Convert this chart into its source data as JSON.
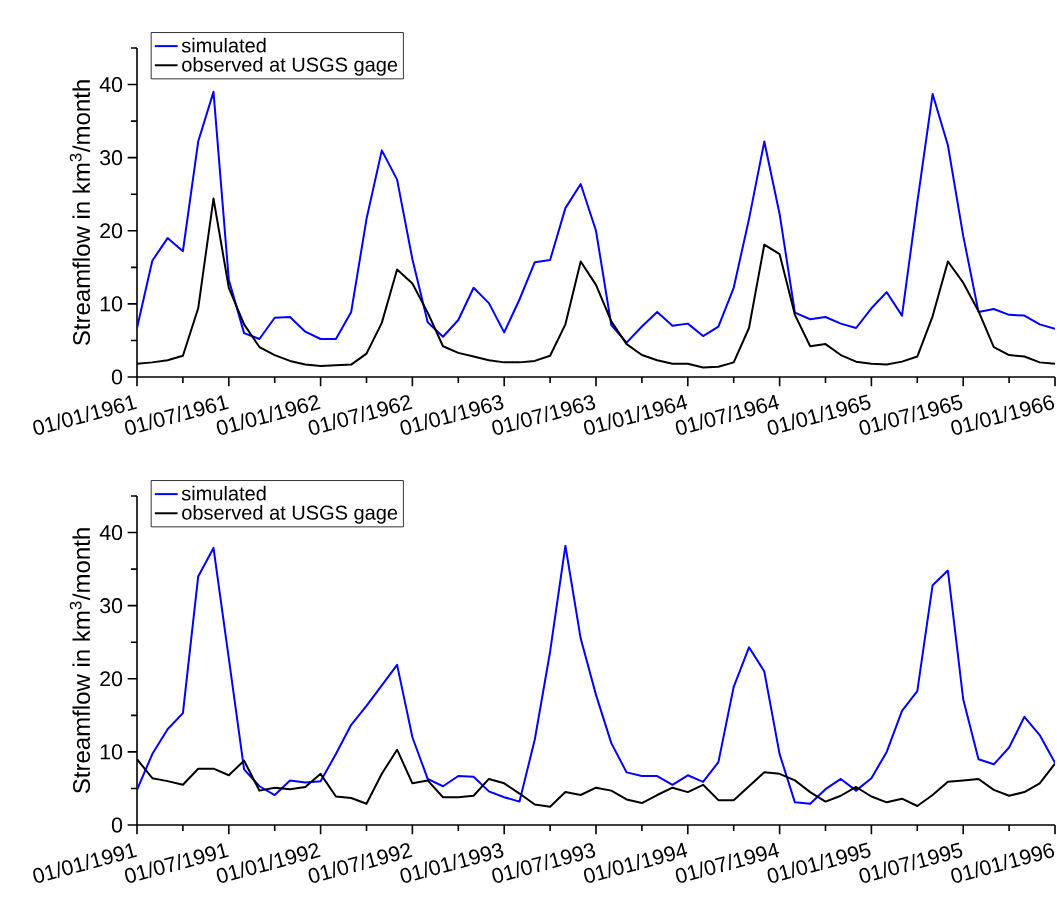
{
  "chart_data": [
    {
      "type": "line",
      "ylabel": "Streamflow in km$^{3}$/month",
      "legend": "top left",
      "x": [
        "1961-01",
        "1961-02",
        "1961-03",
        "1961-04",
        "1961-05",
        "1961-06",
        "1961-07",
        "1961-08",
        "1961-09",
        "1961-10",
        "1961-11",
        "1961-12",
        "1962-01",
        "1962-02",
        "1962-03",
        "1962-04",
        "1962-05",
        "1962-06",
        "1962-07",
        "1962-08",
        "1962-09",
        "1962-10",
        "1962-11",
        "1962-12",
        "1963-01",
        "1963-02",
        "1963-03",
        "1963-04",
        "1963-05",
        "1963-06",
        "1963-07",
        "1963-08",
        "1963-09",
        "1963-10",
        "1963-11",
        "1963-12",
        "1964-01",
        "1964-02",
        "1964-03",
        "1964-04",
        "1964-05",
        "1964-06",
        "1964-07",
        "1964-08",
        "1964-09",
        "1964-10",
        "1964-11",
        "1964-12",
        "1965-01",
        "1965-02",
        "1965-03",
        "1965-04",
        "1965-05",
        "1965-06",
        "1965-07",
        "1965-08",
        "1965-09",
        "1965-10",
        "1965-11",
        "1965-12",
        "1966-01"
      ],
      "series": [
        {
          "name": "simulated",
          "color": "#0000ff",
          "values": [
            6.7,
            15.9,
            19.0,
            17.2,
            32.2,
            39.0,
            13.3,
            6.0,
            5.2,
            8.1,
            8.2,
            6.2,
            5.2,
            5.2,
            8.9,
            21.6,
            31.0,
            27.0,
            16.1,
            7.5,
            5.5,
            7.8,
            12.2,
            10.1,
            6.1,
            10.6,
            15.7,
            16.0,
            23.1,
            26.4,
            20.0,
            7.1,
            4.7,
            6.9,
            8.9,
            7.0,
            7.3,
            5.6,
            6.9,
            12.2,
            21.6,
            32.2,
            22.3,
            8.8,
            7.9,
            8.2,
            7.3,
            6.7,
            9.4,
            11.6,
            8.4,
            23.9,
            38.7,
            31.7,
            19.3,
            8.9,
            9.3,
            8.5,
            8.4,
            7.2,
            6.6
          ]
        },
        {
          "name": "observed at USGS gage",
          "color": "#000000",
          "values": [
            1.8,
            2.0,
            2.3,
            2.9,
            9.4,
            24.4,
            12.2,
            7.2,
            4.1,
            3.0,
            2.2,
            1.7,
            1.5,
            1.6,
            1.7,
            3.2,
            7.4,
            14.7,
            12.8,
            8.8,
            4.2,
            3.3,
            2.8,
            2.3,
            2.0,
            2.0,
            2.2,
            2.9,
            7.2,
            15.8,
            12.6,
            7.6,
            4.5,
            3.0,
            2.3,
            1.8,
            1.8,
            1.3,
            1.4,
            2.0,
            6.7,
            18.1,
            16.8,
            8.5,
            4.2,
            4.5,
            3.0,
            2.1,
            1.8,
            1.7,
            2.1,
            2.8,
            8.3,
            15.8,
            12.9,
            9.0,
            4.1,
            3.0,
            2.8,
            2.0,
            1.8
          ]
        }
      ],
      "xlim": [
        "1961-01",
        "1966-01"
      ],
      "xticks": [
        {
          "value": "1961-01",
          "label": "01/01/1961"
        },
        {
          "value": "1961-04",
          "label": null
        },
        {
          "value": "1961-07",
          "label": "01/07/1961"
        },
        {
          "value": "1961-10",
          "label": null
        },
        {
          "value": "1962-01",
          "label": "01/01/1962"
        },
        {
          "value": "1962-04",
          "label": null
        },
        {
          "value": "1962-07",
          "label": "01/07/1962"
        },
        {
          "value": "1962-10",
          "label": null
        },
        {
          "value": "1963-01",
          "label": "01/01/1963"
        },
        {
          "value": "1963-04",
          "label": null
        },
        {
          "value": "1963-07",
          "label": "01/07/1963"
        },
        {
          "value": "1963-10",
          "label": null
        },
        {
          "value": "1964-01",
          "label": "01/01/1964"
        },
        {
          "value": "1964-04",
          "label": null
        },
        {
          "value": "1964-07",
          "label": "01/07/1964"
        },
        {
          "value": "1964-10",
          "label": null
        },
        {
          "value": "1965-01",
          "label": "01/01/1965"
        },
        {
          "value": "1965-04",
          "label": null
        },
        {
          "value": "1965-07",
          "label": "01/07/1965"
        },
        {
          "value": "1965-10",
          "label": null
        },
        {
          "value": "1966-01",
          "label": "01/01/1966"
        }
      ],
      "ylim": [
        0,
        45
      ],
      "yticks": [
        0,
        {
          "value": 5,
          "label": null
        },
        10,
        {
          "value": 15,
          "label": null
        },
        20,
        {
          "value": 25,
          "label": null
        },
        30,
        {
          "value": 35,
          "label": null
        },
        40,
        {
          "value": 45,
          "label": null
        }
      ]
    },
    {
      "type": "line",
      "ylabel": "Streamflow in km$^{3}$/month",
      "legend": "top left",
      "x": [
        "1991-01",
        "1991-02",
        "1991-03",
        "1991-04",
        "1991-05",
        "1991-06",
        "1991-07",
        "1991-08",
        "1991-09",
        "1991-10",
        "1991-11",
        "1991-12",
        "1992-01",
        "1992-02",
        "1992-03",
        "1992-04",
        "1992-05",
        "1992-06",
        "1992-07",
        "1992-08",
        "1992-09",
        "1992-10",
        "1992-11",
        "1992-12",
        "1993-01",
        "1993-02",
        "1993-03",
        "1993-04",
        "1993-05",
        "1993-06",
        "1993-07",
        "1993-08",
        "1993-09",
        "1993-10",
        "1993-11",
        "1993-12",
        "1994-01",
        "1994-02",
        "1994-03",
        "1994-04",
        "1994-05",
        "1994-06",
        "1994-07",
        "1994-08",
        "1994-09",
        "1994-10",
        "1994-11",
        "1994-12",
        "1995-01",
        "1995-02",
        "1995-03",
        "1995-04",
        "1995-05",
        "1995-06",
        "1995-07",
        "1995-08",
        "1995-09",
        "1995-10",
        "1995-11",
        "1995-12",
        "1996-01"
      ],
      "series": [
        {
          "name": "simulated",
          "color": "#0000ff",
          "values": [
            4.8,
            9.7,
            13.1,
            15.3,
            34.0,
            37.9,
            22.8,
            7.6,
            5.3,
            4.1,
            6.1,
            5.8,
            6.0,
            9.7,
            13.7,
            16.3,
            19.1,
            21.9,
            12.0,
            6.3,
            5.3,
            6.7,
            6.6,
            4.6,
            3.8,
            3.2,
            11.7,
            23.7,
            38.2,
            25.5,
            17.8,
            11.2,
            7.2,
            6.7,
            6.7,
            5.5,
            6.8,
            5.9,
            8.6,
            18.9,
            24.3,
            21.0,
            9.7,
            3.1,
            2.9,
            4.9,
            6.3,
            4.7,
            6.4,
            10.0,
            15.6,
            18.3,
            32.8,
            34.8,
            17.2,
            9.0,
            8.3,
            10.6,
            14.8,
            12.3,
            8.5
          ]
        },
        {
          "name": "observed at USGS gage",
          "color": "#000000",
          "values": [
            9.0,
            6.4,
            6.0,
            5.5,
            7.7,
            7.7,
            6.8,
            8.8,
            4.7,
            5.1,
            4.9,
            5.2,
            7.0,
            3.9,
            3.7,
            2.9,
            7.0,
            10.3,
            5.7,
            6.1,
            3.8,
            3.8,
            4.0,
            6.3,
            5.7,
            4.3,
            2.8,
            2.5,
            4.5,
            4.1,
            5.1,
            4.7,
            3.5,
            3.0,
            4.1,
            5.1,
            4.5,
            5.5,
            3.4,
            3.4,
            5.3,
            7.2,
            7.0,
            6.1,
            4.5,
            3.2,
            4.0,
            5.2,
            3.9,
            3.1,
            3.6,
            2.6,
            4.1,
            5.9,
            6.1,
            6.3,
            4.8,
            4.0,
            4.5,
            5.7,
            8.4
          ]
        }
      ],
      "xlim": [
        "1991-01",
        "1996-01"
      ],
      "xticks": [
        {
          "value": "1991-01",
          "label": "01/01/1991"
        },
        {
          "value": "1991-04",
          "label": null
        },
        {
          "value": "1991-07",
          "label": "01/07/1991"
        },
        {
          "value": "1991-10",
          "label": null
        },
        {
          "value": "1992-01",
          "label": "01/01/1992"
        },
        {
          "value": "1992-04",
          "label": null
        },
        {
          "value": "1992-07",
          "label": "01/07/1992"
        },
        {
          "value": "1992-10",
          "label": null
        },
        {
          "value": "1993-01",
          "label": "01/01/1993"
        },
        {
          "value": "1993-04",
          "label": null
        },
        {
          "value": "1993-07",
          "label": "01/07/1993"
        },
        {
          "value": "1993-10",
          "label": null
        },
        {
          "value": "1994-01",
          "label": "01/01/1994"
        },
        {
          "value": "1994-04",
          "label": null
        },
        {
          "value": "1994-07",
          "label": "01/07/1994"
        },
        {
          "value": "1994-10",
          "label": null
        },
        {
          "value": "1995-01",
          "label": "01/01/1995"
        },
        {
          "value": "1995-04",
          "label": null
        },
        {
          "value": "1995-07",
          "label": "01/07/1995"
        },
        {
          "value": "1995-10",
          "label": null
        },
        {
          "value": "1996-01",
          "label": "01/01/1996"
        }
      ],
      "ylim": [
        0,
        45
      ],
      "yticks": [
        0,
        {
          "value": 5,
          "label": null
        },
        10,
        {
          "value": 15,
          "label": null
        },
        20,
        {
          "value": 25,
          "label": null
        },
        30,
        {
          "value": 35,
          "label": null
        },
        40,
        {
          "value": 45,
          "label": null
        }
      ]
    }
  ]
}
